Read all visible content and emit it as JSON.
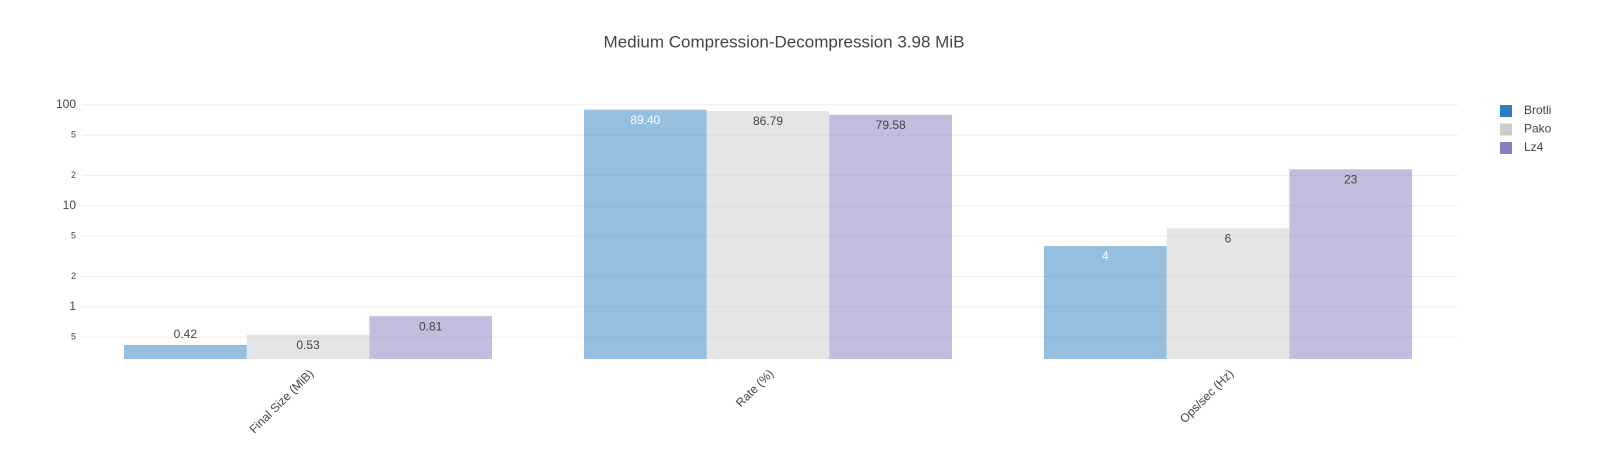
{
  "chart_data": {
    "type": "bar",
    "title": "Medium Compression-Decompression 3.98 MiB",
    "categories": [
      "Final Size (MiB)",
      "Rate (%)",
      "Ops/sec (Hz)"
    ],
    "series": [
      {
        "name": "Brotli",
        "color": "#2e7dbf",
        "values": [
          0.42,
          89.4,
          4
        ],
        "value_labels": [
          "0.42",
          "89.40",
          "4"
        ]
      },
      {
        "name": "Pako",
        "color": "#cccccc",
        "values": [
          0.53,
          86.79,
          6
        ],
        "value_labels": [
          "0.53",
          "86.79",
          "6"
        ]
      },
      {
        "name": "Lz4",
        "color": "#8a7cc0",
        "values": [
          0.81,
          79.58,
          23
        ],
        "value_labels": [
          "0.81",
          "79.58",
          "23"
        ]
      }
    ],
    "log_scale": true,
    "ylim": [
      0.305,
      150
    ],
    "yticks": [
      {
        "value": 0.5,
        "label": "5"
      },
      1,
      2,
      5,
      10,
      {
        "value": 20,
        "label": "2"
      },
      {
        "value": 50,
        "label": "5"
      },
      100
    ],
    "grid": true,
    "legend": "right"
  }
}
